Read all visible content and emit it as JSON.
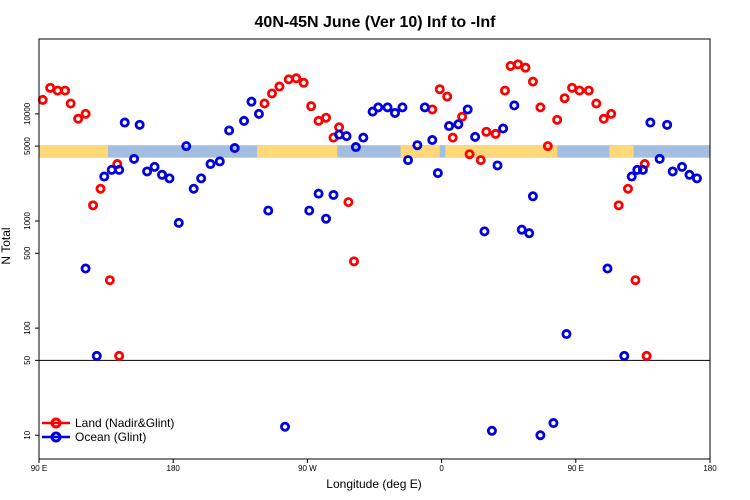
{
  "chart_data": {
    "type": "scatter",
    "title": "40N-45N June (Ver 10)   Inf to -Inf",
    "xlabel": "Longitude (deg E)",
    "ylabel": "N Total",
    "xlim": [
      90,
      450
    ],
    "ylim_log": [
      6,
      50000
    ],
    "x_ticks": [
      {
        "value": 90,
        "label": "90 E"
      },
      {
        "value": 162,
        "label": "180"
      },
      {
        "value": 234,
        "label": "90 W"
      },
      {
        "value": 306,
        "label": "0"
      },
      {
        "value": 378,
        "label": "90 E"
      },
      {
        "value": 450,
        "label": "180"
      }
    ],
    "y_ticks": [
      {
        "value": 10,
        "label": "10"
      },
      {
        "value": 50,
        "label": "50"
      },
      {
        "value": 100,
        "label": "100"
      },
      {
        "value": 500,
        "label": "500"
      },
      {
        "value": 1000,
        "label": "1000"
      },
      {
        "value": 5000,
        "label": "5000"
      },
      {
        "value": 10000,
        "label": "10000"
      }
    ],
    "reference_line": 50,
    "legend_position": "bottom-left",
    "surface_band": {
      "value_low": 3900,
      "value_high": 5100,
      "land_color": "#FFD87A",
      "ocean_color": "#A4BEDF",
      "land_ranges": [
        [
          90,
          127
        ],
        [
          207,
          250
        ],
        [
          284,
          305
        ],
        [
          308,
          368
        ],
        [
          396,
          409
        ]
      ]
    },
    "series": [
      {
        "name": "Land (Nadir&Glint)",
        "color": "#FF0000",
        "points": [
          [
            92,
            13500
          ],
          [
            96,
            17500
          ],
          [
            100,
            16500
          ],
          [
            104,
            16500
          ],
          [
            107,
            12500
          ],
          [
            111,
            9000
          ],
          [
            115,
            10000
          ],
          [
            119,
            1400
          ],
          [
            123,
            2000
          ],
          [
            128,
            280
          ],
          [
            132,
            3400
          ],
          [
            133,
            55
          ],
          [
            211,
            12500
          ],
          [
            215,
            15500
          ],
          [
            219,
            18000
          ],
          [
            224,
            21000
          ],
          [
            228,
            21500
          ],
          [
            232,
            19500
          ],
          [
            236,
            11800
          ],
          [
            240,
            8600
          ],
          [
            244,
            9200
          ],
          [
            248,
            6000
          ],
          [
            251,
            7500
          ],
          [
            256,
            1500
          ],
          [
            259,
            420
          ],
          [
            301,
            11000
          ],
          [
            305,
            17000
          ],
          [
            309,
            14500
          ],
          [
            312,
            6000
          ],
          [
            317,
            9400
          ],
          [
            321,
            4200
          ],
          [
            327,
            3700
          ],
          [
            330,
            6800
          ],
          [
            335,
            6500
          ],
          [
            340,
            16500
          ],
          [
            343,
            28000
          ],
          [
            347,
            29000
          ],
          [
            351,
            27000
          ],
          [
            355,
            20000
          ],
          [
            359,
            11500
          ],
          [
            363,
            5000
          ],
          [
            368,
            8800
          ],
          [
            372,
            14000
          ],
          [
            376,
            17500
          ],
          [
            380,
            16500
          ],
          [
            385,
            16500
          ],
          [
            389,
            12500
          ],
          [
            393,
            9000
          ],
          [
            397,
            10000
          ],
          [
            401,
            1400
          ],
          [
            406,
            2000
          ],
          [
            410,
            280
          ],
          [
            415,
            3400
          ],
          [
            416,
            55
          ]
        ]
      },
      {
        "name": "Ocean (Glint)",
        "color": "#0000E0",
        "points": [
          [
            115,
            360
          ],
          [
            121,
            55
          ],
          [
            125,
            2600
          ],
          [
            129,
            3000
          ],
          [
            133,
            3000
          ],
          [
            136,
            8300
          ],
          [
            141,
            3800
          ],
          [
            144,
            7900
          ],
          [
            148,
            2900
          ],
          [
            152,
            3200
          ],
          [
            156,
            2700
          ],
          [
            160,
            2500
          ],
          [
            165,
            960
          ],
          [
            169,
            5000
          ],
          [
            173,
            2000
          ],
          [
            177,
            2500
          ],
          [
            182,
            3400
          ],
          [
            187,
            3600
          ],
          [
            192,
            7000
          ],
          [
            195,
            4800
          ],
          [
            200,
            8600
          ],
          [
            204,
            13000
          ],
          [
            208,
            10000
          ],
          [
            213,
            1250
          ],
          [
            222,
            12
          ],
          [
            235,
            1250
          ],
          [
            240,
            1800
          ],
          [
            244,
            1050
          ],
          [
            248,
            1750
          ],
          [
            251,
            6400
          ],
          [
            255,
            6200
          ],
          [
            260,
            4900
          ],
          [
            264,
            6000
          ],
          [
            269,
            10500
          ],
          [
            272,
            11500
          ],
          [
            277,
            11500
          ],
          [
            281,
            10200
          ],
          [
            285,
            11500
          ],
          [
            288,
            3700
          ],
          [
            293,
            5100
          ],
          [
            297,
            11500
          ],
          [
            301,
            5700
          ],
          [
            304,
            2800
          ],
          [
            310,
            7700
          ],
          [
            315,
            8000
          ],
          [
            320,
            11000
          ],
          [
            324,
            6100
          ],
          [
            329,
            800
          ],
          [
            333,
            11
          ],
          [
            336,
            3300
          ],
          [
            339,
            7300
          ],
          [
            345,
            12000
          ],
          [
            349,
            830
          ],
          [
            353,
            770
          ],
          [
            355,
            1700
          ],
          [
            359,
            10
          ],
          [
            366,
            13
          ],
          [
            373,
            88
          ],
          [
            395,
            360
          ],
          [
            404,
            55
          ],
          [
            408,
            2600
          ],
          [
            411,
            3000
          ],
          [
            414,
            3000
          ],
          [
            418,
            8300
          ],
          [
            423,
            3800
          ],
          [
            427,
            7900
          ],
          [
            430,
            2900
          ],
          [
            435,
            3200
          ],
          [
            439,
            2700
          ],
          [
            443,
            2500
          ]
        ]
      }
    ]
  }
}
